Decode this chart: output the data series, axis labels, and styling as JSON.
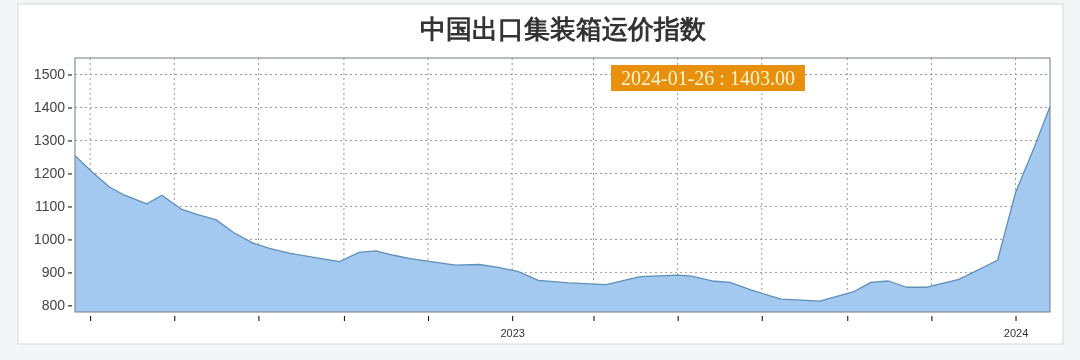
{
  "chart_data": {
    "type": "area",
    "title": "中国出口集装箱运价指数",
    "x": [
      "2022-02-18",
      "2022-03-03",
      "2022-03-15",
      "2022-03-26",
      "2022-04-11",
      "2022-04-22",
      "2022-05-06",
      "2022-05-18",
      "2022-05-31",
      "2022-06-13",
      "2022-06-27",
      "2022-07-09",
      "2022-07-24",
      "2022-08-08",
      "2022-08-29",
      "2022-09-12",
      "2022-09-24",
      "2022-10-07",
      "2022-10-19",
      "2022-11-03",
      "2022-11-21",
      "2022-12-08",
      "2022-12-21",
      "2023-01-05",
      "2023-01-20",
      "2023-02-11",
      "2023-03-10",
      "2023-04-04",
      "2023-05-01",
      "2023-05-11",
      "2023-05-26",
      "2023-06-08",
      "2023-06-23",
      "2023-07-15",
      "2023-08-12",
      "2023-09-06",
      "2023-09-18",
      "2023-10-01",
      "2023-10-14",
      "2023-10-28",
      "2023-11-21",
      "2023-12-19",
      "2024-01-01",
      "2024-01-14",
      "2024-01-26"
    ],
    "series": [
      {
        "color": "#a3c9f1",
        "values": [
          1254,
          1202,
          1159,
          1134,
          1108,
          1134,
          1092,
          1075,
          1060,
          1021,
          989,
          973,
          958,
          947,
          933,
          961,
          965,
          952,
          942,
          933,
          922,
          924,
          916,
          903,
          876,
          868,
          863,
          887,
          892,
          889,
          874,
          870,
          847,
          819,
          813,
          842,
          870,
          874,
          855,
          855,
          879,
          937,
          1142,
          1273,
          1403
        ]
      }
    ],
    "xlim": [
      "2022-02-18",
      "2024-01-26"
    ],
    "xticks": [
      {
        "value": "2022-03-01",
        "label": null
      },
      {
        "value": "2022-05-01",
        "label": null
      },
      {
        "value": "2022-07-01",
        "label": null
      },
      {
        "value": "2022-09-01",
        "label": null
      },
      {
        "value": "2022-11-01",
        "label": null
      },
      {
        "value": "2023-01-01",
        "label": "2023"
      },
      {
        "value": "2023-03-01",
        "label": null
      },
      {
        "value": "2023-05-01",
        "label": null
      },
      {
        "value": "2023-07-01",
        "label": null
      },
      {
        "value": "2023-09-01",
        "label": null
      },
      {
        "value": "2023-11-01",
        "label": null
      },
      {
        "value": "2024-01-01",
        "label": "2024"
      }
    ],
    "ylim": [
      780,
      1550
    ],
    "yticks": [
      800,
      900,
      1000,
      1100,
      1200,
      1300,
      1400,
      1500
    ],
    "grid": true,
    "annotations": [
      "2024-01-26 : 1403.00"
    ]
  }
}
